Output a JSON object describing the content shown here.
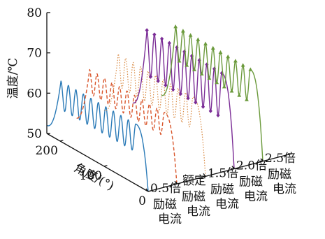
{
  "chart_data": {
    "type": "line",
    "view": "3d-waterfall",
    "title": "",
    "zlabel": "温度/℃",
    "ylabel": "角度/(°)",
    "zlim": [
      50,
      80
    ],
    "z_ticks": [
      "50",
      "60",
      "70",
      "80"
    ],
    "ylim": [
      0,
      230
    ],
    "y_ticks": [
      "0",
      "100",
      "200"
    ],
    "grid": false,
    "legend": "none",
    "categories": [
      [
        "0.5倍",
        "励磁",
        "电流"
      ],
      [
        "额定",
        "励磁",
        "电流"
      ],
      [
        "1.5倍",
        "励磁",
        "电流"
      ],
      [
        "2.0倍",
        "励磁",
        "电流"
      ],
      [
        "2.5倍",
        "励磁",
        "电流"
      ]
    ],
    "series": [
      {
        "color": "#2a7ab7",
        "style": "solid",
        "marker": "none",
        "cycles": 10,
        "base": 50,
        "low": 58,
        "high": 65,
        "plateau_from": 28,
        "plateau_to": 198
      },
      {
        "color": "#d9572d",
        "style": "dashed",
        "marker": "none",
        "cycles": 10,
        "base": 50,
        "low": 60,
        "high": 66,
        "plateau_from": 28,
        "plateau_to": 198
      },
      {
        "color": "#d98a43",
        "style": "dotted",
        "marker": "none",
        "cycles": 10,
        "base": 50,
        "low": 60,
        "high": 68,
        "plateau_from": 28,
        "plateau_to": 198
      },
      {
        "color": "#7b2d96",
        "style": "solid",
        "marker": "diamond",
        "cycles": 10,
        "base": 50,
        "low": 61,
        "high": 72,
        "plateau_from": 28,
        "plateau_to": 198
      },
      {
        "color": "#6b9a3c",
        "style": "solid",
        "marker": "triangle",
        "cycles": 10,
        "base": 50,
        "low": 63,
        "high": 71,
        "plateau_from": 28,
        "plateau_to": 198
      }
    ]
  }
}
